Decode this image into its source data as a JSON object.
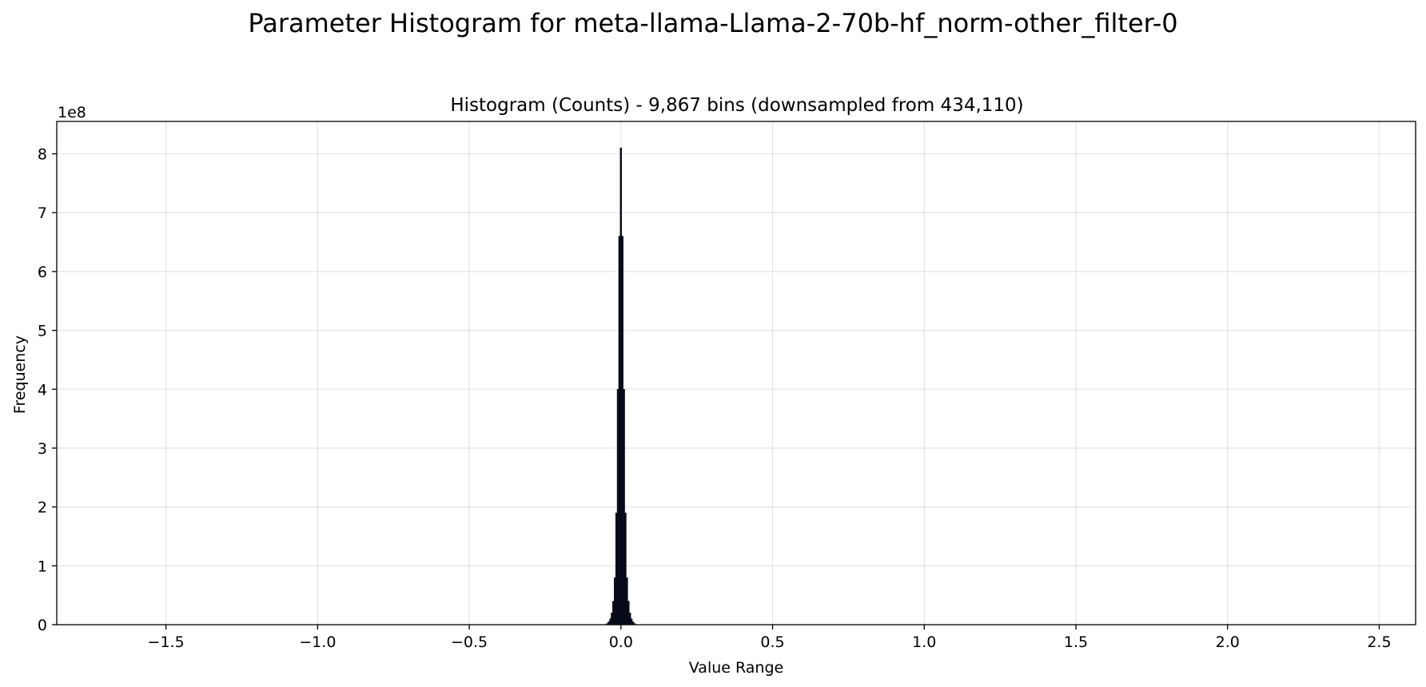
{
  "figure": {
    "suptitle": "Parameter Histogram for meta-llama-Llama-2-70b-hf_norm-other_filter-0"
  },
  "chart_data": {
    "type": "histogram",
    "title": "Histogram (Counts) - 9,867 bins (downsampled from 434,110)",
    "xlabel": "Value Range",
    "ylabel": "Frequency",
    "y_offset_label": "1e8",
    "y_scale": 100000000,
    "xlim": [
      -1.86,
      2.62
    ],
    "ylim": [
      0,
      8.55
    ],
    "grid": true,
    "bar_color": "#0a0e24",
    "edge_color": "#000000",
    "x_ticks": [
      {
        "value": -1.5,
        "label": "−1.5"
      },
      {
        "value": -1.0,
        "label": "−1.0"
      },
      {
        "value": -0.5,
        "label": "−0.5"
      },
      {
        "value": 0.0,
        "label": "0.0"
      },
      {
        "value": 0.5,
        "label": "0.5"
      },
      {
        "value": 1.0,
        "label": "1.0"
      },
      {
        "value": 1.5,
        "label": "1.5"
      },
      {
        "value": 2.0,
        "label": "2.0"
      },
      {
        "value": 2.5,
        "label": "2.5"
      }
    ],
    "y_ticks": [
      {
        "value": 0,
        "label": "0"
      },
      {
        "value": 1,
        "label": "1"
      },
      {
        "value": 2,
        "label": "2"
      },
      {
        "value": 3,
        "label": "3"
      },
      {
        "value": 4,
        "label": "4"
      },
      {
        "value": 5,
        "label": "5"
      },
      {
        "value": 6,
        "label": "6"
      },
      {
        "value": 7,
        "label": "7"
      },
      {
        "value": 8,
        "label": "8"
      }
    ],
    "distribution": {
      "shape": "approx. symmetric peak centered near zero",
      "x": [
        -0.05,
        -0.045,
        -0.04,
        -0.035,
        -0.03,
        -0.025,
        -0.02,
        -0.015,
        -0.01,
        -0.005,
        0.0,
        0.005,
        0.01,
        0.015,
        0.02,
        0.025,
        0.03,
        0.035,
        0.04,
        0.045,
        0.05
      ],
      "values": [
        0.0,
        0.02,
        0.05,
        0.1,
        0.2,
        0.4,
        0.8,
        1.9,
        4.0,
        6.6,
        8.1,
        6.6,
        4.0,
        1.9,
        0.8,
        0.4,
        0.2,
        0.1,
        0.05,
        0.02,
        0.0
      ]
    }
  }
}
